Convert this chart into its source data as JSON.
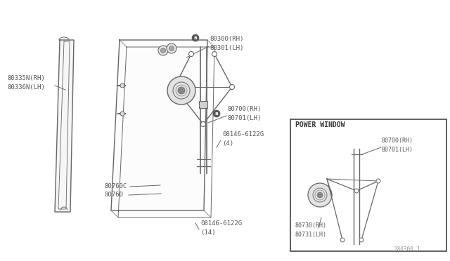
{
  "bg_color": "#ffffff",
  "fig_width": 6.4,
  "fig_height": 3.72,
  "dpi": 100,
  "labels": {
    "80335N_RH": "80335N(RH)",
    "80336N_LH": "80336N(LH)",
    "80300_RH": "80300(RH)",
    "80301_LH": "80301(LH)",
    "80700_RH": "80700(RH)",
    "80701_LH": "80701(LH)",
    "80760C": "80760C",
    "80760": "80760",
    "pw_title": "POWER WINDOW",
    "pw_80700_RH": "80700(RH)",
    "pw_80701_LH": "80701(LH)",
    "pw_80730_RH": "80730(RH)",
    "pw_80731_LH": "80731(LH)",
    "part_num": "J80300 J"
  },
  "line_color": "#666666",
  "text_color": "#555555",
  "font_size": 6.5,
  "small_font": 5.5
}
